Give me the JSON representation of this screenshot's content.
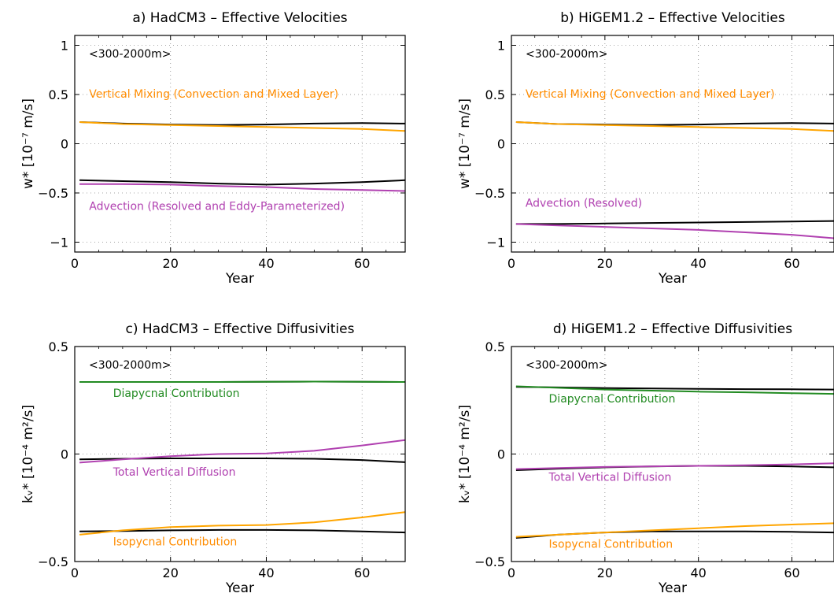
{
  "chart_data": [
    {
      "id": "a",
      "type": "line",
      "title": "a) HadCM3 – Effective Velocities",
      "xlabel": "Year",
      "ylabel": "w* [10⁻⁷ m/s]",
      "xlim": [
        0,
        69
      ],
      "ylim": [
        -1.1,
        1.1
      ],
      "xticks": [
        0,
        20,
        40,
        60
      ],
      "yticks": [
        1,
        0.5,
        0,
        -0.5,
        -1
      ],
      "ytick_labels": [
        "1",
        "0.5",
        "0",
        "−0.5",
        "−1"
      ],
      "grid": "dotted",
      "region_label": "<300-2000m>",
      "annotations": [
        {
          "text": "Vertical Mixing (Convection and Mixed Layer)",
          "x": 3,
          "y": 0.47,
          "color": "#ff8c00"
        },
        {
          "text": "Advection (Resolved and Eddy-Parameterized)",
          "x": 3,
          "y": -0.67,
          "color": "#b040b0"
        }
      ],
      "series": [
        {
          "color": "#000000",
          "x": [
            1,
            10,
            20,
            30,
            40,
            50,
            60,
            69
          ],
          "y": [
            0.22,
            0.205,
            0.195,
            0.19,
            0.195,
            0.205,
            0.21,
            0.205
          ]
        },
        {
          "color": "#ffa500",
          "x": [
            1,
            10,
            20,
            30,
            40,
            50,
            60,
            69
          ],
          "y": [
            0.22,
            0.2,
            0.19,
            0.18,
            0.17,
            0.16,
            0.15,
            0.13
          ]
        },
        {
          "color": "#000000",
          "x": [
            1,
            10,
            20,
            30,
            40,
            50,
            60,
            69
          ],
          "y": [
            -0.37,
            -0.38,
            -0.39,
            -0.405,
            -0.415,
            -0.405,
            -0.39,
            -0.37
          ]
        },
        {
          "color": "#b040b0",
          "x": [
            1,
            10,
            20,
            30,
            40,
            50,
            60,
            69
          ],
          "y": [
            -0.41,
            -0.41,
            -0.415,
            -0.43,
            -0.44,
            -0.46,
            -0.47,
            -0.48
          ]
        }
      ]
    },
    {
      "id": "b",
      "type": "line",
      "title": "b) HiGEM1.2 – Effective Velocities",
      "xlabel": "Year",
      "ylabel": "w* [10⁻⁷ m/s]",
      "xlim": [
        0,
        69
      ],
      "ylim": [
        -1.1,
        1.1
      ],
      "xticks": [
        0,
        20,
        40,
        60
      ],
      "yticks": [
        1,
        0.5,
        0,
        -0.5,
        -1
      ],
      "ytick_labels": [
        "1",
        "0.5",
        "0",
        "−0.5",
        "−1"
      ],
      "grid": "dotted",
      "region_label": "<300-2000m>",
      "annotations": [
        {
          "text": "Vertical Mixing (Convection and Mixed Layer)",
          "x": 3,
          "y": 0.47,
          "color": "#ff8c00"
        },
        {
          "text": "Advection (Resolved)",
          "x": 3,
          "y": -0.64,
          "color": "#b040b0"
        }
      ],
      "series": [
        {
          "color": "#000000",
          "x": [
            1,
            10,
            20,
            30,
            40,
            50,
            60,
            69
          ],
          "y": [
            0.22,
            0.2,
            0.195,
            0.19,
            0.195,
            0.205,
            0.21,
            0.205
          ]
        },
        {
          "color": "#ffa500",
          "x": [
            1,
            10,
            20,
            30,
            40,
            50,
            60,
            69
          ],
          "y": [
            0.22,
            0.2,
            0.19,
            0.18,
            0.17,
            0.16,
            0.15,
            0.13
          ]
        },
        {
          "color": "#000000",
          "x": [
            1,
            10,
            20,
            30,
            40,
            50,
            60,
            69
          ],
          "y": [
            -0.815,
            -0.815,
            -0.81,
            -0.805,
            -0.8,
            -0.795,
            -0.79,
            -0.785
          ]
        },
        {
          "color": "#b040b0",
          "x": [
            1,
            10,
            20,
            30,
            40,
            50,
            60,
            69
          ],
          "y": [
            -0.815,
            -0.83,
            -0.845,
            -0.86,
            -0.875,
            -0.9,
            -0.925,
            -0.96
          ]
        }
      ]
    },
    {
      "id": "c",
      "type": "line",
      "title": "c) HadCM3 – Effective Diffusivities",
      "xlabel": "Year",
      "ylabel": "kᵥ* [10⁻⁴ m²/s]",
      "xlim": [
        0,
        69
      ],
      "ylim": [
        -0.5,
        0.5
      ],
      "xticks": [
        0,
        20,
        40,
        60
      ],
      "yticks": [
        0.5,
        0,
        -0.5
      ],
      "ytick_labels": [
        "0.5",
        "0",
        "−0.5"
      ],
      "grid": "dotted",
      "region_label": "<300-2000m>",
      "annotations": [
        {
          "text": "Diapycnal Contribution",
          "x": 8,
          "y": 0.265,
          "color": "#228b22"
        },
        {
          "text": "Total Vertical Diffusion",
          "x": 8,
          "y": -0.1,
          "color": "#b040b0"
        },
        {
          "text": "Isopycnal Contribution",
          "x": 8,
          "y": -0.425,
          "color": "#ff8c00"
        }
      ],
      "series": [
        {
          "color": "#000000",
          "x": [
            1,
            10,
            20,
            30,
            40,
            50,
            60,
            69
          ],
          "y": [
            0.335,
            0.335,
            0.335,
            0.335,
            0.336,
            0.337,
            0.336,
            0.335
          ]
        },
        {
          "color": "#228b22",
          "x": [
            1,
            10,
            20,
            30,
            40,
            50,
            60,
            69
          ],
          "y": [
            0.335,
            0.335,
            0.335,
            0.335,
            0.336,
            0.337,
            0.336,
            0.335
          ]
        },
        {
          "color": "#000000",
          "x": [
            1,
            10,
            20,
            30,
            40,
            50,
            60,
            69
          ],
          "y": [
            -0.025,
            -0.022,
            -0.02,
            -0.02,
            -0.02,
            -0.022,
            -0.028,
            -0.038
          ]
        },
        {
          "color": "#b040b0",
          "x": [
            1,
            10,
            20,
            30,
            40,
            50,
            60,
            69
          ],
          "y": [
            -0.04,
            -0.025,
            -0.01,
            0.0,
            0.003,
            0.015,
            0.04,
            0.065
          ]
        },
        {
          "color": "#000000",
          "x": [
            1,
            10,
            20,
            30,
            40,
            50,
            60,
            69
          ],
          "y": [
            -0.36,
            -0.358,
            -0.355,
            -0.353,
            -0.353,
            -0.355,
            -0.36,
            -0.365
          ]
        },
        {
          "color": "#ffa500",
          "x": [
            1,
            10,
            20,
            30,
            40,
            50,
            60,
            69
          ],
          "y": [
            -0.375,
            -0.355,
            -0.34,
            -0.333,
            -0.33,
            -0.318,
            -0.295,
            -0.27
          ]
        }
      ]
    },
    {
      "id": "d",
      "type": "line",
      "title": "d) HiGEM1.2 – Effective Diffusivities",
      "xlabel": "Year",
      "ylabel": "kᵥ* [10⁻⁴ m²/s]",
      "xlim": [
        0,
        69
      ],
      "ylim": [
        -0.5,
        0.5
      ],
      "xticks": [
        0,
        20,
        40,
        60
      ],
      "yticks": [
        0.5,
        0,
        -0.5
      ],
      "ytick_labels": [
        "0.5",
        "0",
        "−0.5"
      ],
      "grid": "dotted",
      "region_label": "<300-2000m>",
      "annotations": [
        {
          "text": "Diapycnal Contribution",
          "x": 8,
          "y": 0.24,
          "color": "#228b22"
        },
        {
          "text": "Total Vertical Diffusion",
          "x": 8,
          "y": -0.125,
          "color": "#b040b0"
        },
        {
          "text": "Isopycnal Contribution",
          "x": 8,
          "y": -0.435,
          "color": "#ff8c00"
        }
      ],
      "series": [
        {
          "color": "#000000",
          "x": [
            1,
            10,
            20,
            30,
            40,
            50,
            60,
            69
          ],
          "y": [
            0.312,
            0.31,
            0.307,
            0.305,
            0.303,
            0.302,
            0.301,
            0.3
          ]
        },
        {
          "color": "#228b22",
          "x": [
            1,
            10,
            20,
            30,
            40,
            50,
            60,
            69
          ],
          "y": [
            0.315,
            0.308,
            0.3,
            0.295,
            0.29,
            0.287,
            0.283,
            0.28
          ]
        },
        {
          "color": "#000000",
          "x": [
            1,
            10,
            20,
            30,
            40,
            50,
            60,
            69
          ],
          "y": [
            -0.075,
            -0.068,
            -0.062,
            -0.058,
            -0.055,
            -0.055,
            -0.058,
            -0.062
          ]
        },
        {
          "color": "#b040b0",
          "x": [
            1,
            10,
            20,
            30,
            40,
            50,
            60,
            69
          ],
          "y": [
            -0.07,
            -0.065,
            -0.06,
            -0.057,
            -0.055,
            -0.052,
            -0.048,
            -0.043
          ]
        },
        {
          "color": "#000000",
          "x": [
            1,
            10,
            20,
            30,
            40,
            50,
            60,
            69
          ],
          "y": [
            -0.39,
            -0.375,
            -0.365,
            -0.36,
            -0.36,
            -0.36,
            -0.362,
            -0.365
          ]
        },
        {
          "color": "#ffa500",
          "x": [
            1,
            10,
            20,
            30,
            40,
            50,
            60,
            69
          ],
          "y": [
            -0.385,
            -0.375,
            -0.365,
            -0.355,
            -0.345,
            -0.335,
            -0.328,
            -0.322
          ]
        }
      ]
    }
  ]
}
